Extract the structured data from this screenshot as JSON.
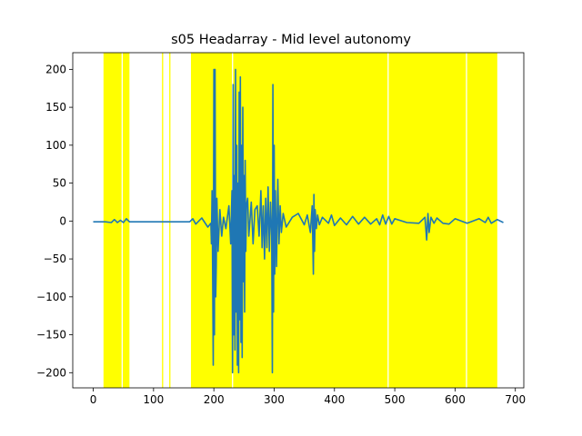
{
  "chart_data": {
    "type": "line",
    "title": "s05 Headarray - Mid level autonomy",
    "xlabel": "",
    "ylabel": "",
    "xlim": [
      -34,
      714
    ],
    "ylim": [
      -220,
      222
    ],
    "x_ticks": [
      0,
      100,
      200,
      300,
      400,
      500,
      600,
      700
    ],
    "y_ticks": [
      -200,
      -150,
      -100,
      -50,
      0,
      50,
      100,
      150,
      200
    ],
    "grid": false,
    "legend": "none",
    "colors": {
      "series": "#1f77b4",
      "highlight": "#ffff00"
    },
    "highlight_spans": [
      [
        17,
        47
      ],
      [
        49,
        60
      ],
      [
        114,
        116
      ],
      [
        126,
        128
      ],
      [
        162,
        230
      ],
      [
        232,
        488
      ],
      [
        490,
        618
      ],
      [
        620,
        670
      ]
    ],
    "series": [
      {
        "x": [
          0,
          20,
          30,
          35,
          40,
          45,
          50,
          55,
          60,
          80,
          100,
          120,
          140,
          160,
          165,
          170,
          180,
          190,
          195,
          196,
          197,
          198,
          199,
          200,
          201,
          202,
          203,
          204,
          205,
          207,
          210,
          213,
          216,
          220,
          225,
          228,
          230,
          231,
          232,
          233,
          234,
          235,
          236,
          237,
          238,
          239,
          240,
          241,
          242,
          243,
          244,
          245,
          246,
          247,
          248,
          249,
          250,
          251,
          252,
          253,
          254,
          256,
          258,
          262,
          265,
          268,
          272,
          275,
          278,
          280,
          282,
          284,
          286,
          288,
          290,
          292,
          294,
          296,
          297,
          298,
          299,
          300,
          301,
          302,
          304,
          306,
          308,
          310,
          312,
          315,
          320,
          330,
          340,
          350,
          355,
          360,
          363,
          365,
          366,
          367,
          368,
          370,
          372,
          375,
          380,
          390,
          395,
          400,
          410,
          420,
          430,
          440,
          450,
          460,
          470,
          475,
          480,
          485,
          490,
          495,
          500,
          520,
          540,
          550,
          553,
          555,
          557,
          560,
          565,
          570,
          580,
          590,
          600,
          620,
          640,
          650,
          655,
          660,
          670,
          680
        ],
        "y": [
          -1,
          -1,
          -2,
          2,
          -2,
          1,
          -2,
          3,
          -1,
          -1,
          -1,
          -1,
          -1,
          -1,
          3,
          -4,
          4,
          -8,
          -3,
          -30,
          40,
          -60,
          -190,
          200,
          -150,
          200,
          -100,
          -60,
          30,
          -40,
          15,
          -20,
          5,
          -10,
          20,
          -30,
          40,
          -200,
          180,
          -150,
          60,
          -170,
          200,
          -120,
          100,
          -190,
          50,
          -200,
          170,
          -130,
          190,
          -160,
          100,
          -180,
          150,
          -80,
          60,
          -120,
          80,
          -40,
          20,
          30,
          -20,
          25,
          -30,
          15,
          20,
          -20,
          40,
          -35,
          20,
          -50,
          30,
          -35,
          45,
          -40,
          25,
          -20,
          -200,
          180,
          -120,
          100,
          -70,
          40,
          -60,
          55,
          -30,
          20,
          -15,
          10,
          -8,
          5,
          10,
          -5,
          8,
          -15,
          20,
          -70,
          35,
          -40,
          15,
          -10,
          8,
          -5,
          5,
          -3,
          8,
          -6,
          4,
          -5,
          6,
          -4,
          5,
          -4,
          3,
          -5,
          8,
          -4,
          6,
          -4,
          3,
          -2,
          -3,
          5,
          -25,
          10,
          -15,
          5,
          -3,
          4,
          -3,
          -4,
          3,
          -3,
          3,
          -2,
          5,
          -3,
          2,
          -2
        ]
      }
    ]
  }
}
